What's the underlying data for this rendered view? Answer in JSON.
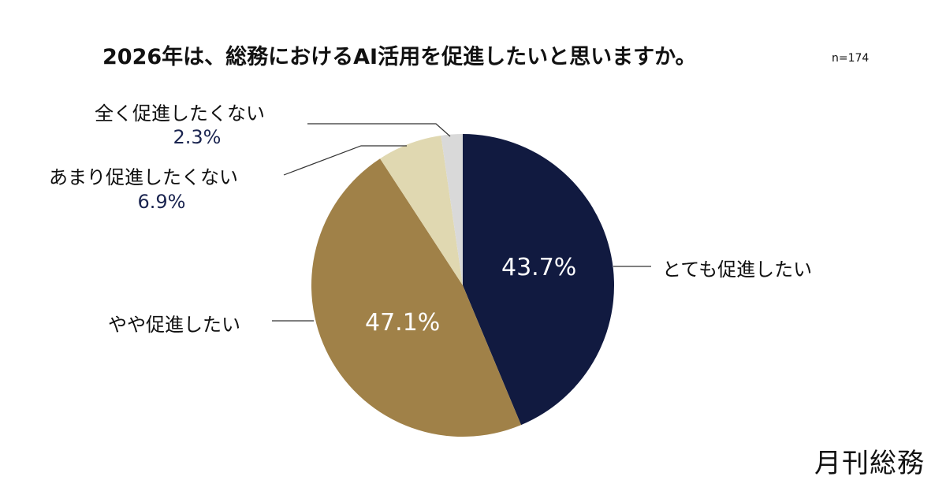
{
  "chart_data": {
    "type": "pie",
    "title": "2026年は、総務におけるAI活用を促進したいと思いますか。",
    "sample_size": "n=174",
    "start": "top",
    "direction": "clockwise",
    "slices": [
      {
        "label": "とても促進したい",
        "value": 43.7,
        "value_label": "43.7%",
        "color": "#111a40"
      },
      {
        "label": "やや促進したい",
        "value": 47.1,
        "value_label": "47.1%",
        "color": "#a08148"
      },
      {
        "label": "あまり促進したくない",
        "value": 6.9,
        "value_label": "6.9%",
        "color": "#e0d8b1"
      },
      {
        "label": "全く促進したくない",
        "value": 2.3,
        "value_label": "2.3%",
        "color": "#d9d9d9"
      }
    ]
  },
  "logo": "月刊総務"
}
